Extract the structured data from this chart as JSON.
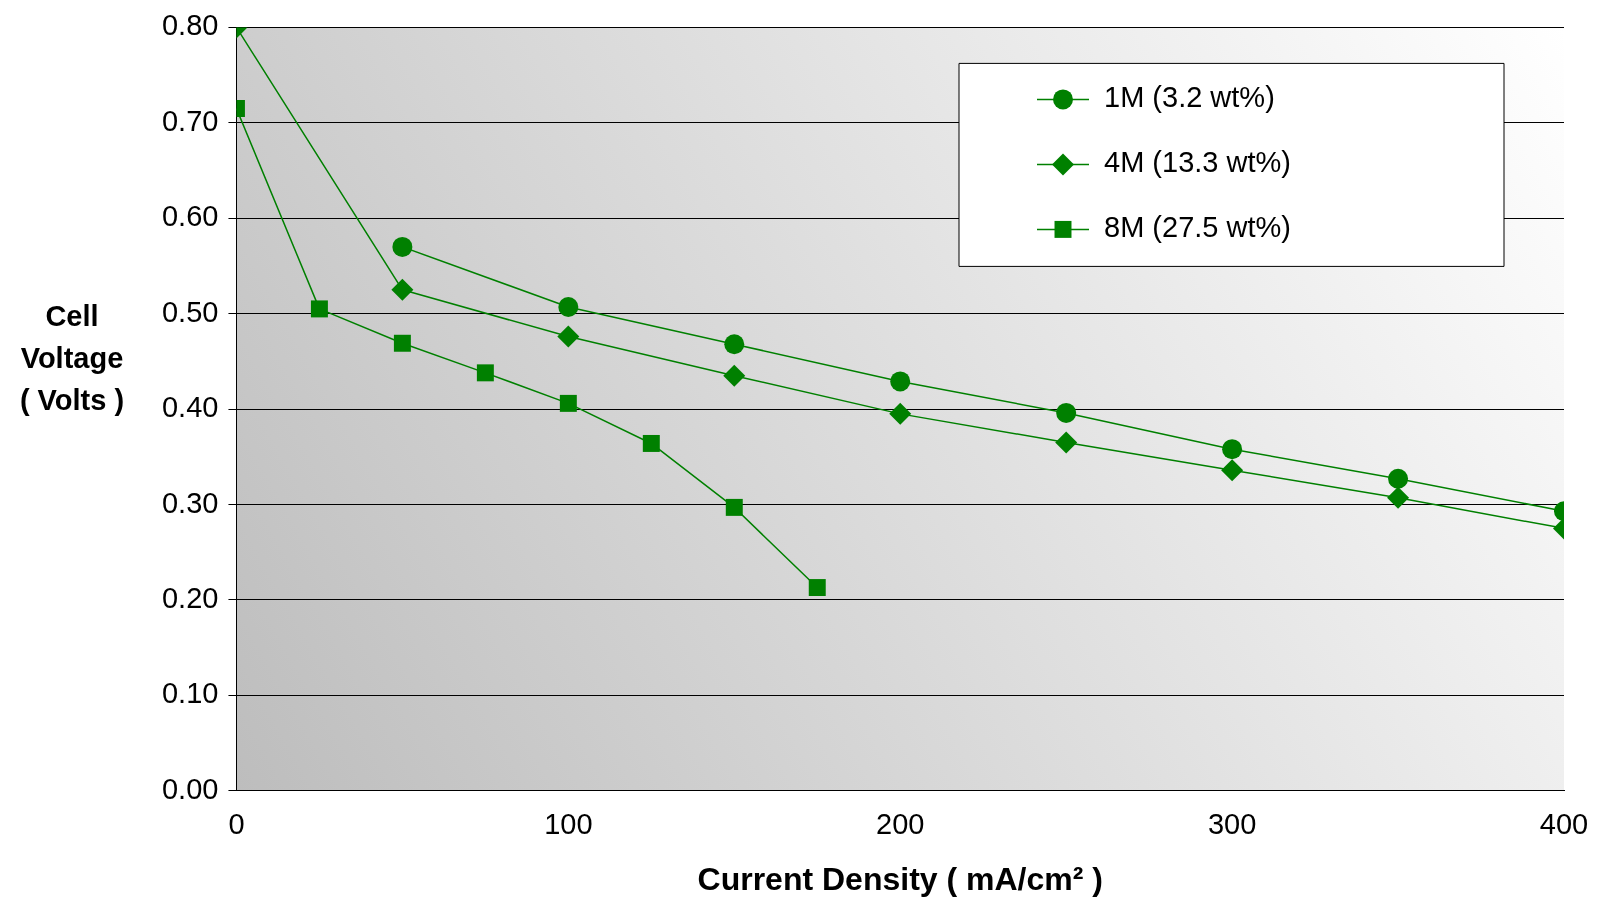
{
  "chart_data": {
    "type": "line",
    "xlabel": "Current Density ( mA/cm² )",
    "ylabel": "Cell Voltage ( Volts )",
    "xlim": [
      0,
      400
    ],
    "xticks": [
      0,
      100,
      200,
      300,
      400
    ],
    "ylim": [
      0,
      0.8
    ],
    "yticks": [
      {
        "value": 0,
        "label": "0.00"
      },
      {
        "value": 0.1,
        "label": "0.10"
      },
      {
        "value": 0.2,
        "label": "0.20"
      },
      {
        "value": 0.3,
        "label": "0.30"
      },
      {
        "value": 0.4,
        "label": "0.40"
      },
      {
        "value": 0.5,
        "label": "0.50"
      },
      {
        "value": 0.6,
        "label": "0.60"
      },
      {
        "value": 0.7,
        "label": "0.70"
      },
      {
        "value": 0.8,
        "label": "0.80"
      }
    ],
    "grid": "y",
    "legend": "top right",
    "series": [
      {
        "name": "1M (3.2 wt%)",
        "color": "#008000",
        "marker": "circle",
        "x": [
          50,
          100,
          150,
          200,
          250,
          300,
          350,
          400
        ],
        "values": [
          0.57,
          0.507,
          0.468,
          0.429,
          0.396,
          0.358,
          0.327,
          0.293
        ]
      },
      {
        "name": "4M (13.3 wt%)",
        "color": "#008000",
        "marker": "diamond",
        "x": [
          0,
          50,
          100,
          150,
          200,
          250,
          300,
          350,
          400
        ],
        "values": [
          0.8,
          0.525,
          0.476,
          0.435,
          0.395,
          0.365,
          0.336,
          0.307,
          0.275
        ]
      },
      {
        "name": "8M (27.5 wt%)",
        "color": "#008000",
        "marker": "square",
        "x": [
          0,
          25,
          50,
          75,
          100,
          125,
          150,
          175
        ],
        "values": [
          0.715,
          0.505,
          0.469,
          0.438,
          0.406,
          0.364,
          0.297,
          0.213
        ]
      }
    ]
  }
}
